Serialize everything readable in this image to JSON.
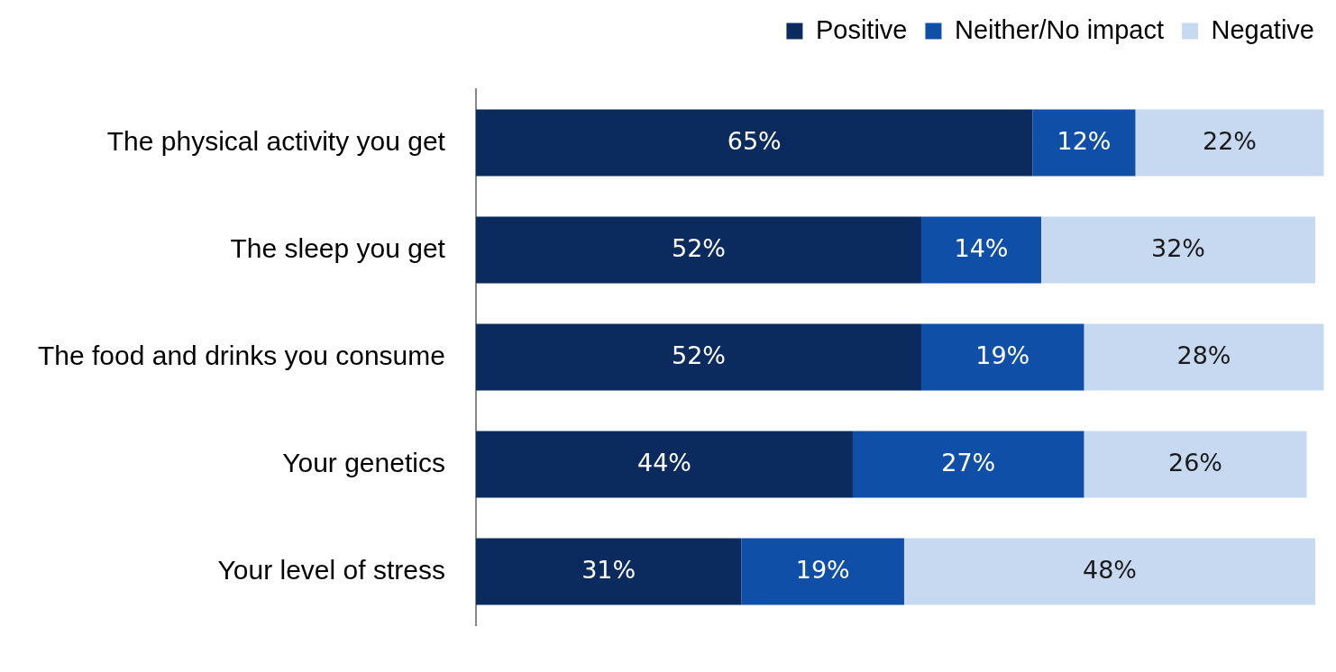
{
  "chart_data": {
    "type": "bar",
    "orientation": "horizontal",
    "stacked": true,
    "categories": [
      "The physical activity you get",
      "The sleep you get",
      "The food and drinks you consume",
      "Your genetics",
      "Your level of stress"
    ],
    "series": [
      {
        "name": "Positive",
        "color": "#0b2a5e",
        "values": [
          65,
          52,
          52,
          44,
          31
        ],
        "value_labels": [
          "65%",
          "52%",
          "52%",
          "44%",
          "31%"
        ]
      },
      {
        "name": "Neither/No impact",
        "color": "#0f4fa8",
        "values": [
          12,
          14,
          19,
          27,
          19
        ],
        "value_labels": [
          "12%",
          "14%",
          "19%",
          "27%",
          "19%"
        ]
      },
      {
        "name": "Negative",
        "color": "#c6d9f1",
        "values": [
          22,
          32,
          28,
          26,
          48
        ],
        "value_labels": [
          "22%",
          "32%",
          "28%",
          "26%",
          "48%"
        ]
      }
    ],
    "tick_labels": "y",
    "legend": "top right"
  }
}
